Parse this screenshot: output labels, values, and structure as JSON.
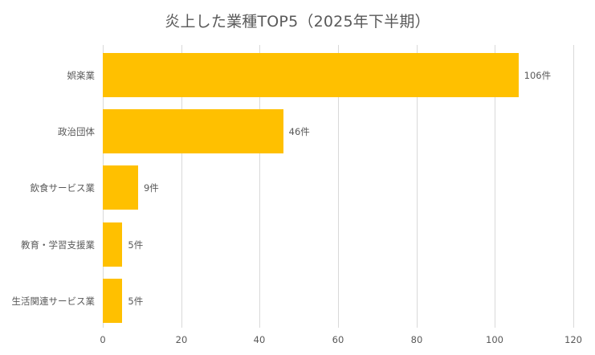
{
  "chart_data": {
    "type": "bar",
    "orientation": "horizontal",
    "title": "炎上した業種TOP5（2025年下半期）",
    "categories": [
      "娯楽業",
      "政治団体",
      "飲食サービス業",
      "教育・学習支援業",
      "生活関連サービス業"
    ],
    "values": [
      106,
      46,
      9,
      5,
      5
    ],
    "value_labels": [
      "106件",
      "46件",
      "9件",
      "5件",
      "5件"
    ],
    "xlabel": "",
    "ylabel": "",
    "xlim": [
      0,
      120
    ],
    "xticks": [
      "0",
      "20",
      "40",
      "60",
      "80",
      "100",
      "120"
    ],
    "grid": true,
    "legend": null,
    "bar_color": "#FFC000"
  }
}
